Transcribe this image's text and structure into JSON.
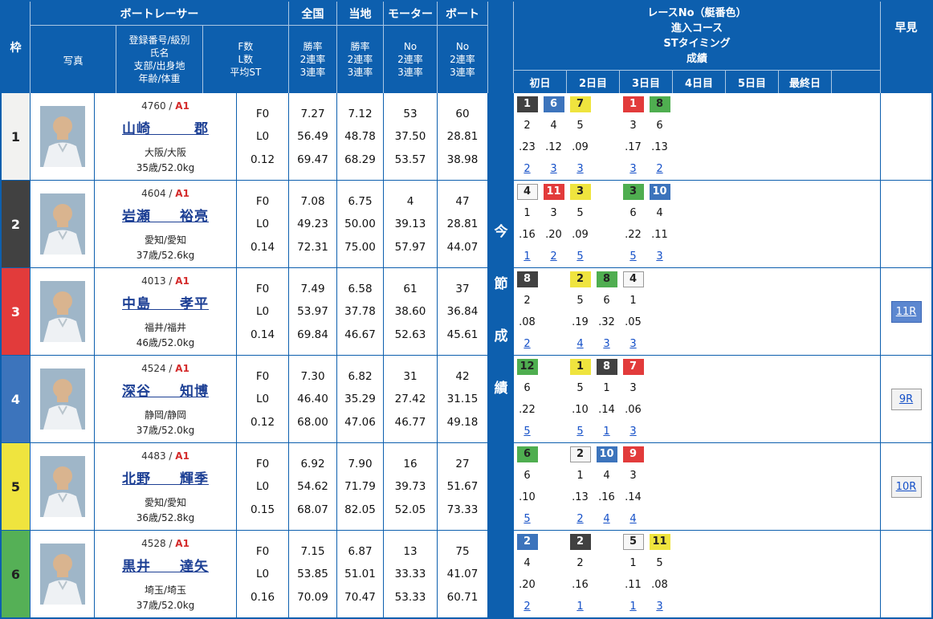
{
  "colors": {
    "header_bg": "#0d5fae",
    "link": "#1550c8",
    "name_link": "#1c3f94",
    "grade_red": "#d42b2b"
  },
  "header": {
    "frame": "枠",
    "racer": "ボートレーサー",
    "photo": "写真",
    "profile_lines": [
      "登録番号/級別",
      "氏名",
      "支部/出身地",
      "年齢/体重"
    ],
    "fl_lines": [
      "F数",
      "L数",
      "平均ST"
    ],
    "zenkoku": {
      "title": "全国",
      "lines": [
        "勝率",
        "2連率",
        "3連率"
      ]
    },
    "touchi": {
      "title": "当地",
      "lines": [
        "勝率",
        "2連率",
        "3連率"
      ]
    },
    "motor": {
      "title": "モーター",
      "lines": [
        "No",
        "2連率",
        "3連率"
      ]
    },
    "boat": {
      "title": "ボート",
      "lines": [
        "No",
        "2連率",
        "3連率"
      ]
    },
    "right_title_lines": [
      "レースNo（艇番色）",
      "進入コース",
      "STタイミング",
      "成績"
    ],
    "days": [
      "初日",
      "2日目",
      "3日目",
      "4日目",
      "5日目",
      "最終日"
    ],
    "hayami": "早見",
    "setsu": "今節成績"
  },
  "frame_colors": {
    "1": {
      "bg": "#f2f2f0",
      "fg": "#222222"
    },
    "2": {
      "bg": "#414141",
      "fg": "#ffffff"
    },
    "3": {
      "bg": "#e23b3b",
      "fg": "#ffffff"
    },
    "4": {
      "bg": "#3c74bc",
      "fg": "#ffffff"
    },
    "5": {
      "bg": "#efe43e",
      "fg": "#222222"
    },
    "6": {
      "bg": "#55b056",
      "fg": "#222222"
    }
  },
  "boat_colors": {
    "1": {
      "bg": "#f7f7f7",
      "fg": "#222222",
      "border": "#999999"
    },
    "2": {
      "bg": "#414141",
      "fg": "#ffffff"
    },
    "3": {
      "bg": "#e23b3b",
      "fg": "#ffffff"
    },
    "4": {
      "bg": "#3c74bc",
      "fg": "#ffffff"
    },
    "5": {
      "bg": "#efe43e",
      "fg": "#222222"
    },
    "6": {
      "bg": "#4fae50",
      "fg": "#222222"
    }
  },
  "racers": [
    {
      "frame": "1",
      "reg": "4760",
      "grade": "A1",
      "name": "山崎　　　郡",
      "branch": "大阪/大阪",
      "age_weight": "35歳/52.0kg",
      "fl": [
        "F0",
        "L0",
        "0.12"
      ],
      "zenkoku": [
        "7.27",
        "56.49",
        "69.47"
      ],
      "touchi": [
        "7.12",
        "48.78",
        "68.29"
      ],
      "motor": [
        "53",
        "37.50",
        "53.57"
      ],
      "boat": [
        "60",
        "28.81",
        "38.98"
      ],
      "days": [
        {
          "races": [
            {
              "no": "1",
              "boat": "2"
            },
            {
              "no": "6",
              "boat": "4"
            }
          ],
          "courses": [
            "2",
            "4"
          ],
          "sts": [
            ".23",
            ".12"
          ],
          "results": [
            "2",
            "3"
          ]
        },
        {
          "races": [
            {
              "no": "7",
              "boat": "5"
            }
          ],
          "courses": [
            "5"
          ],
          "sts": [
            ".09"
          ],
          "results": [
            "3"
          ]
        },
        {
          "races": [
            {
              "no": "1",
              "boat": "3"
            },
            {
              "no": "8",
              "boat": "6"
            }
          ],
          "courses": [
            "3",
            "6"
          ],
          "sts": [
            ".17",
            ".13"
          ],
          "results": [
            "3",
            "2"
          ]
        },
        null,
        null,
        null
      ],
      "hayami": null
    },
    {
      "frame": "2",
      "reg": "4604",
      "grade": "A1",
      "name": "岩瀬　　裕亮",
      "branch": "愛知/愛知",
      "age_weight": "37歳/52.6kg",
      "fl": [
        "F0",
        "L0",
        "0.14"
      ],
      "zenkoku": [
        "7.08",
        "49.23",
        "72.31"
      ],
      "touchi": [
        "6.75",
        "50.00",
        "75.00"
      ],
      "motor": [
        "4",
        "39.13",
        "57.97"
      ],
      "boat": [
        "47",
        "28.81",
        "44.07"
      ],
      "days": [
        {
          "races": [
            {
              "no": "4",
              "boat": "1"
            },
            {
              "no": "11",
              "boat": "3"
            }
          ],
          "courses": [
            "1",
            "3"
          ],
          "sts": [
            ".16",
            ".20"
          ],
          "results": [
            "1",
            "2"
          ]
        },
        {
          "races": [
            {
              "no": "3",
              "boat": "5"
            }
          ],
          "courses": [
            "5"
          ],
          "sts": [
            ".09"
          ],
          "results": [
            "5"
          ]
        },
        {
          "races": [
            {
              "no": "3",
              "boat": "6"
            },
            {
              "no": "10",
              "boat": "4"
            }
          ],
          "courses": [
            "6",
            "4"
          ],
          "sts": [
            ".22",
            ".11"
          ],
          "results": [
            "5",
            "3"
          ]
        },
        null,
        null,
        null
      ],
      "hayami": null
    },
    {
      "frame": "3",
      "reg": "4013",
      "grade": "A1",
      "name": "中島　　孝平",
      "branch": "福井/福井",
      "age_weight": "46歳/52.0kg",
      "fl": [
        "F0",
        "L0",
        "0.14"
      ],
      "zenkoku": [
        "7.49",
        "53.97",
        "69.84"
      ],
      "touchi": [
        "6.58",
        "37.78",
        "46.67"
      ],
      "motor": [
        "61",
        "38.60",
        "52.63"
      ],
      "boat": [
        "37",
        "36.84",
        "45.61"
      ],
      "days": [
        {
          "races": [
            {
              "no": "8",
              "boat": "2"
            }
          ],
          "courses": [
            "2"
          ],
          "sts": [
            ".08"
          ],
          "results": [
            "2"
          ]
        },
        {
          "races": [
            {
              "no": "2",
              "boat": "5"
            },
            {
              "no": "8",
              "boat": "6"
            }
          ],
          "courses": [
            "5",
            "6"
          ],
          "sts": [
            ".19",
            ".32"
          ],
          "results": [
            "4",
            "3"
          ]
        },
        {
          "races": [
            {
              "no": "4",
              "boat": "1"
            }
          ],
          "courses": [
            "1"
          ],
          "sts": [
            ".05"
          ],
          "results": [
            "3"
          ]
        },
        null,
        null,
        null
      ],
      "hayami": {
        "label": "11R",
        "style": "primary"
      }
    },
    {
      "frame": "4",
      "reg": "4524",
      "grade": "A1",
      "name": "深谷　　知博",
      "branch": "静岡/静岡",
      "age_weight": "37歳/52.0kg",
      "fl": [
        "F0",
        "L0",
        "0.12"
      ],
      "zenkoku": [
        "7.30",
        "46.40",
        "68.00"
      ],
      "touchi": [
        "6.82",
        "35.29",
        "47.06"
      ],
      "motor": [
        "31",
        "27.42",
        "46.77"
      ],
      "boat": [
        "42",
        "31.15",
        "49.18"
      ],
      "days": [
        {
          "races": [
            {
              "no": "12",
              "boat": "6"
            }
          ],
          "courses": [
            "6"
          ],
          "sts": [
            ".22"
          ],
          "results": [
            "5"
          ]
        },
        {
          "races": [
            {
              "no": "1",
              "boat": "5"
            },
            {
              "no": "8",
              "boat": "2"
            }
          ],
          "courses": [
            "5",
            "1"
          ],
          "sts": [
            ".10",
            ".14"
          ],
          "results": [
            "5",
            "1"
          ]
        },
        {
          "races": [
            {
              "no": "7",
              "boat": "3"
            }
          ],
          "courses": [
            "3"
          ],
          "sts": [
            ".06"
          ],
          "results": [
            "3"
          ]
        },
        null,
        null,
        null
      ],
      "hayami": {
        "label": "9R",
        "style": "secondary"
      }
    },
    {
      "frame": "5",
      "reg": "4483",
      "grade": "A1",
      "name": "北野　　輝季",
      "branch": "愛知/愛知",
      "age_weight": "36歳/52.8kg",
      "fl": [
        "F0",
        "L0",
        "0.15"
      ],
      "zenkoku": [
        "6.92",
        "54.62",
        "68.07"
      ],
      "touchi": [
        "7.90",
        "71.79",
        "82.05"
      ],
      "motor": [
        "16",
        "39.73",
        "52.05"
      ],
      "boat": [
        "27",
        "51.67",
        "73.33"
      ],
      "days": [
        {
          "races": [
            {
              "no": "6",
              "boat": "6"
            }
          ],
          "courses": [
            "6"
          ],
          "sts": [
            ".10"
          ],
          "results": [
            "5"
          ]
        },
        {
          "races": [
            {
              "no": "2",
              "boat": "1"
            },
            {
              "no": "10",
              "boat": "4"
            }
          ],
          "courses": [
            "1",
            "4"
          ],
          "sts": [
            ".13",
            ".16"
          ],
          "results": [
            "2",
            "4"
          ]
        },
        {
          "races": [
            {
              "no": "9",
              "boat": "3"
            }
          ],
          "courses": [
            "3"
          ],
          "sts": [
            ".14"
          ],
          "results": [
            "4"
          ]
        },
        null,
        null,
        null
      ],
      "hayami": {
        "label": "10R",
        "style": "secondary"
      }
    },
    {
      "frame": "6",
      "reg": "4528",
      "grade": "A1",
      "name": "黒井　　達矢",
      "branch": "埼玉/埼玉",
      "age_weight": "37歳/52.0kg",
      "fl": [
        "F0",
        "L0",
        "0.16"
      ],
      "zenkoku": [
        "7.15",
        "53.85",
        "70.09"
      ],
      "touchi": [
        "6.87",
        "51.01",
        "70.47"
      ],
      "motor": [
        "13",
        "33.33",
        "53.33"
      ],
      "boat": [
        "75",
        "41.07",
        "60.71"
      ],
      "days": [
        {
          "races": [
            {
              "no": "2",
              "boat": "4"
            }
          ],
          "courses": [
            "4"
          ],
          "sts": [
            ".20"
          ],
          "results": [
            "2"
          ]
        },
        {
          "races": [
            {
              "no": "2",
              "boat": "2"
            }
          ],
          "courses": [
            "2"
          ],
          "sts": [
            ".16"
          ],
          "results": [
            "1"
          ]
        },
        {
          "races": [
            {
              "no": "5",
              "boat": "1"
            },
            {
              "no": "11",
              "boat": "5"
            }
          ],
          "courses": [
            "1",
            "5"
          ],
          "sts": [
            ".11",
            ".08"
          ],
          "results": [
            "1",
            "3"
          ]
        },
        null,
        null,
        null
      ],
      "hayami": null
    }
  ]
}
